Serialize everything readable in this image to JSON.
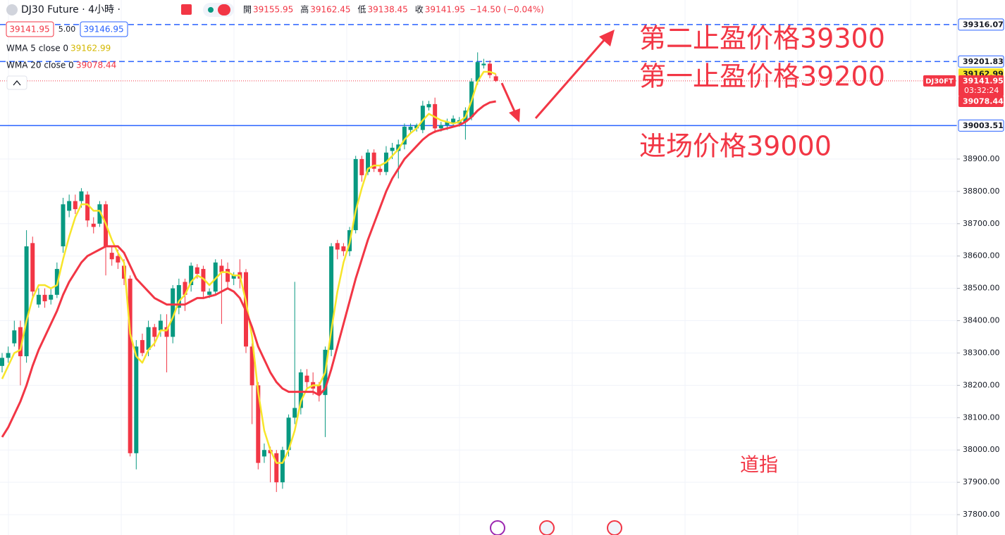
{
  "chart_data": {
    "type": "candlestick",
    "title": "DJ30 Future · 4小時 ·",
    "ohlc_legend": [
      {
        "label": "開",
        "value": 39155.95
      },
      {
        "label": "高",
        "value": 39162.45
      },
      {
        "label": "低",
        "value": 39138.45
      },
      {
        "label": "收",
        "value": 39141.95
      }
    ],
    "change": "−14.50 (−0.04%)",
    "quote": {
      "bid": 39141.95,
      "spread": "5.00",
      "ask": 39146.95
    },
    "ylim": [
      37737,
      39392
    ],
    "yticks": [
      {
        "value": 37800,
        "label": "37800.00"
      },
      {
        "value": 37900,
        "label": "37900.00"
      },
      {
        "value": 38000,
        "label": "38000.00"
      },
      {
        "value": 38100,
        "label": "38100.00"
      },
      {
        "value": 38200,
        "label": "38200.00"
      },
      {
        "value": 38300,
        "label": "38300.00"
      },
      {
        "value": 38400,
        "label": "38400.00"
      },
      {
        "value": 38500,
        "label": "38500.00"
      },
      {
        "value": 38600,
        "label": "38600.00"
      },
      {
        "value": 38700,
        "label": "38700.00"
      },
      {
        "value": 38800,
        "label": "38800.00"
      },
      {
        "value": 38900,
        "label": "38900.00"
      }
    ],
    "grid": true,
    "candles": {
      "up_color": "#089981",
      "down_color": "#f23645",
      "open": [
        38260,
        38285,
        38330,
        38380,
        38290,
        38640,
        38450,
        38480,
        38465,
        38480,
        38630,
        38740,
        38770,
        38770,
        38790,
        38700,
        38700,
        38760,
        38610,
        38600,
        38570,
        38530,
        37990,
        38340,
        38310,
        38380,
        38370,
        38380,
        38350,
        38440,
        38520,
        38510,
        38565,
        38560,
        38480,
        38490,
        38570,
        38560,
        38530,
        38550,
        38550,
        38320,
        38200,
        37980,
        38000,
        37990,
        37900,
        38000,
        38100,
        38130,
        38230,
        38210,
        38200,
        38170,
        38310,
        38640,
        38630,
        38615,
        38680,
        38900,
        38860,
        38920,
        38870,
        38860,
        38925,
        38925,
        38945,
        38990,
        38995,
        38990,
        39060,
        39070,
        38995,
        39005,
        39010,
        39010,
        39015,
        39030,
        39140,
        39190,
        39195,
        39155.95
      ],
      "high": [
        38300,
        38320,
        38400,
        38400,
        38680,
        38660,
        38500,
        38500,
        38500,
        38580,
        38780,
        38790,
        38790,
        38810,
        38800,
        38720,
        38770,
        38770,
        38630,
        38620,
        38590,
        38540,
        38340,
        38360,
        38400,
        38390,
        38420,
        38420,
        38510,
        38530,
        38530,
        38580,
        38575,
        38570,
        38500,
        38590,
        38590,
        38580,
        38550,
        38590,
        38560,
        38330,
        38210,
        38020,
        38010,
        38000,
        38010,
        38110,
        38520,
        38250,
        38250,
        38240,
        38210,
        38320,
        38640,
        38650,
        38640,
        38690,
        38910,
        38910,
        38930,
        38930,
        38880,
        38940,
        38950,
        38960,
        39010,
        39010,
        39010,
        39080,
        39080,
        39090,
        39015,
        39025,
        39035,
        39030,
        39060,
        39150,
        39230,
        39210,
        39205,
        39162.45
      ],
      "low": [
        38240,
        38270,
        38320,
        38200,
        38270,
        38470,
        38440,
        38440,
        38450,
        38470,
        38610,
        38720,
        38730,
        38750,
        38690,
        38670,
        38690,
        38540,
        38570,
        38560,
        38510,
        37980,
        37940,
        38290,
        38290,
        38320,
        38350,
        38240,
        38330,
        38420,
        38430,
        38490,
        38530,
        38470,
        38470,
        38480,
        38390,
        38500,
        38510,
        38500,
        38300,
        38080,
        37940,
        37960,
        37900,
        37870,
        37880,
        37980,
        38080,
        38110,
        38190,
        38170,
        38150,
        38040,
        38290,
        38590,
        38600,
        38600,
        38670,
        38830,
        38850,
        38860,
        38850,
        38850,
        38900,
        38840,
        38930,
        38980,
        38985,
        38980,
        39050,
        38980,
        38985,
        38990,
        39000,
        39000,
        38960,
        39020,
        39130,
        39180,
        39150,
        39138.45
      ],
      "close": [
        38285,
        38300,
        38370,
        38290,
        38630,
        38490,
        38480,
        38460,
        38480,
        38560,
        38760,
        38770,
        38745,
        38800,
        38710,
        38690,
        38760,
        38630,
        38590,
        38580,
        38530,
        37990,
        38320,
        38300,
        38380,
        38350,
        38400,
        38350,
        38500,
        38510,
        38480,
        38570,
        38545,
        38490,
        38490,
        38580,
        38550,
        38520,
        38540,
        38530,
        38320,
        38200,
        37960,
        38000,
        37990,
        37900,
        38000,
        38100,
        38130,
        38240,
        38210,
        38190,
        38170,
        38310,
        38630,
        38620,
        38615,
        38680,
        38900,
        38850,
        38920,
        38870,
        38860,
        38920,
        38935,
        38945,
        39000,
        39000,
        39005,
        39065,
        39070,
        38995,
        39005,
        39015,
        39025,
        39020,
        39050,
        39140,
        39200,
        39195,
        39160,
        39141.95
      ]
    },
    "series": [
      {
        "name": "WMA 5 close 0",
        "color": "#f7e52a",
        "values": [
          38220,
          38260,
          38300,
          38310,
          38400,
          38470,
          38510,
          38510,
          38500,
          38510,
          38590,
          38660,
          38720,
          38760,
          38760,
          38740,
          38740,
          38700,
          38650,
          38610,
          38580,
          38360,
          38290,
          38270,
          38310,
          38330,
          38370,
          38370,
          38410,
          38460,
          38480,
          38520,
          38540,
          38530,
          38510,
          38530,
          38550,
          38550,
          38540,
          38540,
          38460,
          38350,
          38180,
          38060,
          38000,
          37960,
          37960,
          38000,
          38060,
          38150,
          38190,
          38200,
          38200,
          38240,
          38370,
          38490,
          38580,
          38640,
          38740,
          38810,
          38870,
          38880,
          38880,
          38890,
          38910,
          38930,
          38960,
          38980,
          38995,
          39020,
          39040,
          39030,
          39020,
          39015,
          39010,
          39015,
          39030,
          39080,
          39140,
          39170,
          39170,
          39162.99
        ]
      },
      {
        "name": "WMA 20 close 0",
        "color": "#f23645",
        "values": [
          38040,
          38070,
          38110,
          38150,
          38200,
          38260,
          38310,
          38350,
          38390,
          38430,
          38480,
          38520,
          38550,
          38580,
          38600,
          38610,
          38620,
          38630,
          38630,
          38630,
          38610,
          38570,
          38530,
          38510,
          38490,
          38470,
          38460,
          38450,
          38450,
          38450,
          38450,
          38460,
          38470,
          38470,
          38475,
          38480,
          38490,
          38500,
          38490,
          38470,
          38430,
          38380,
          38320,
          38280,
          38240,
          38210,
          38190,
          38180,
          38180,
          38180,
          38180,
          38180,
          38170,
          38190,
          38250,
          38320,
          38390,
          38460,
          38530,
          38590,
          38650,
          38700,
          38750,
          38800,
          38840,
          38870,
          38900,
          38920,
          38940,
          38960,
          38975,
          38985,
          38990,
          38995,
          39000,
          39005,
          39015,
          39030,
          39050,
          39065,
          39075,
          39078.44
        ]
      }
    ],
    "price_lines": [
      {
        "value": 39316.07,
        "style": "dashed",
        "color": "#2962ff"
      },
      {
        "value": 39201.83,
        "style": "dashed",
        "color": "#2962ff"
      },
      {
        "value": 39003.51,
        "style": "solid",
        "color": "#2962ff"
      }
    ],
    "last_price": {
      "value": 39141.95,
      "symbol": "DJ30FT",
      "countdown": "03:32:24",
      "color": "#f23645"
    },
    "annotations": [
      {
        "text": "第二止盈价格39300"
      },
      {
        "text": "第一止盈价格39200"
      },
      {
        "text": "进场价格39000"
      },
      {
        "text": "道指"
      }
    ]
  }
}
